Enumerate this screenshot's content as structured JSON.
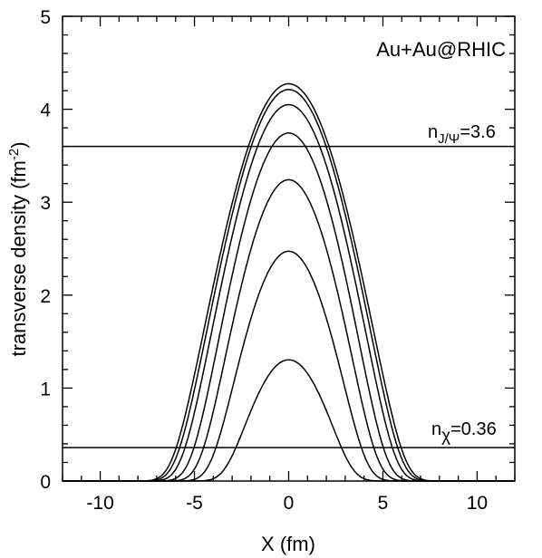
{
  "chart_data": {
    "type": "line",
    "title": "Au+Au@RHIC",
    "xlabel": "X (fm)",
    "ylabel": {
      "main": "transverse density (fm",
      "sup": "-2",
      "close": ")"
    },
    "xlim": [
      -12,
      12
    ],
    "ylim": [
      0,
      5
    ],
    "xticks": [
      -10,
      -5,
      0,
      5,
      10
    ],
    "yticks": [
      0,
      1,
      2,
      3,
      4,
      5
    ],
    "grid": false,
    "series_shape": "gaussian-like profiles, density vs X",
    "series": [
      {
        "peak": 4.32,
        "halfwidth": 6.5
      },
      {
        "peak": 4.26,
        "halfwidth": 6.3
      },
      {
        "peak": 4.1,
        "halfwidth": 6.0
      },
      {
        "peak": 3.8,
        "halfwidth": 5.5
      },
      {
        "peak": 3.3,
        "halfwidth": 5.0
      },
      {
        "peak": 2.53,
        "halfwidth": 4.4
      },
      {
        "peak": 1.35,
        "halfwidth": 3.6
      }
    ],
    "thresholds": [
      {
        "value": 3.6,
        "label_main": "n",
        "label_sub": "J/Ψ",
        "label_rest": "=3.6"
      },
      {
        "value": 0.36,
        "label_main": "n",
        "label_sub": "χ",
        "label_rest": "=0.36"
      }
    ],
    "line_color": "#000000"
  }
}
